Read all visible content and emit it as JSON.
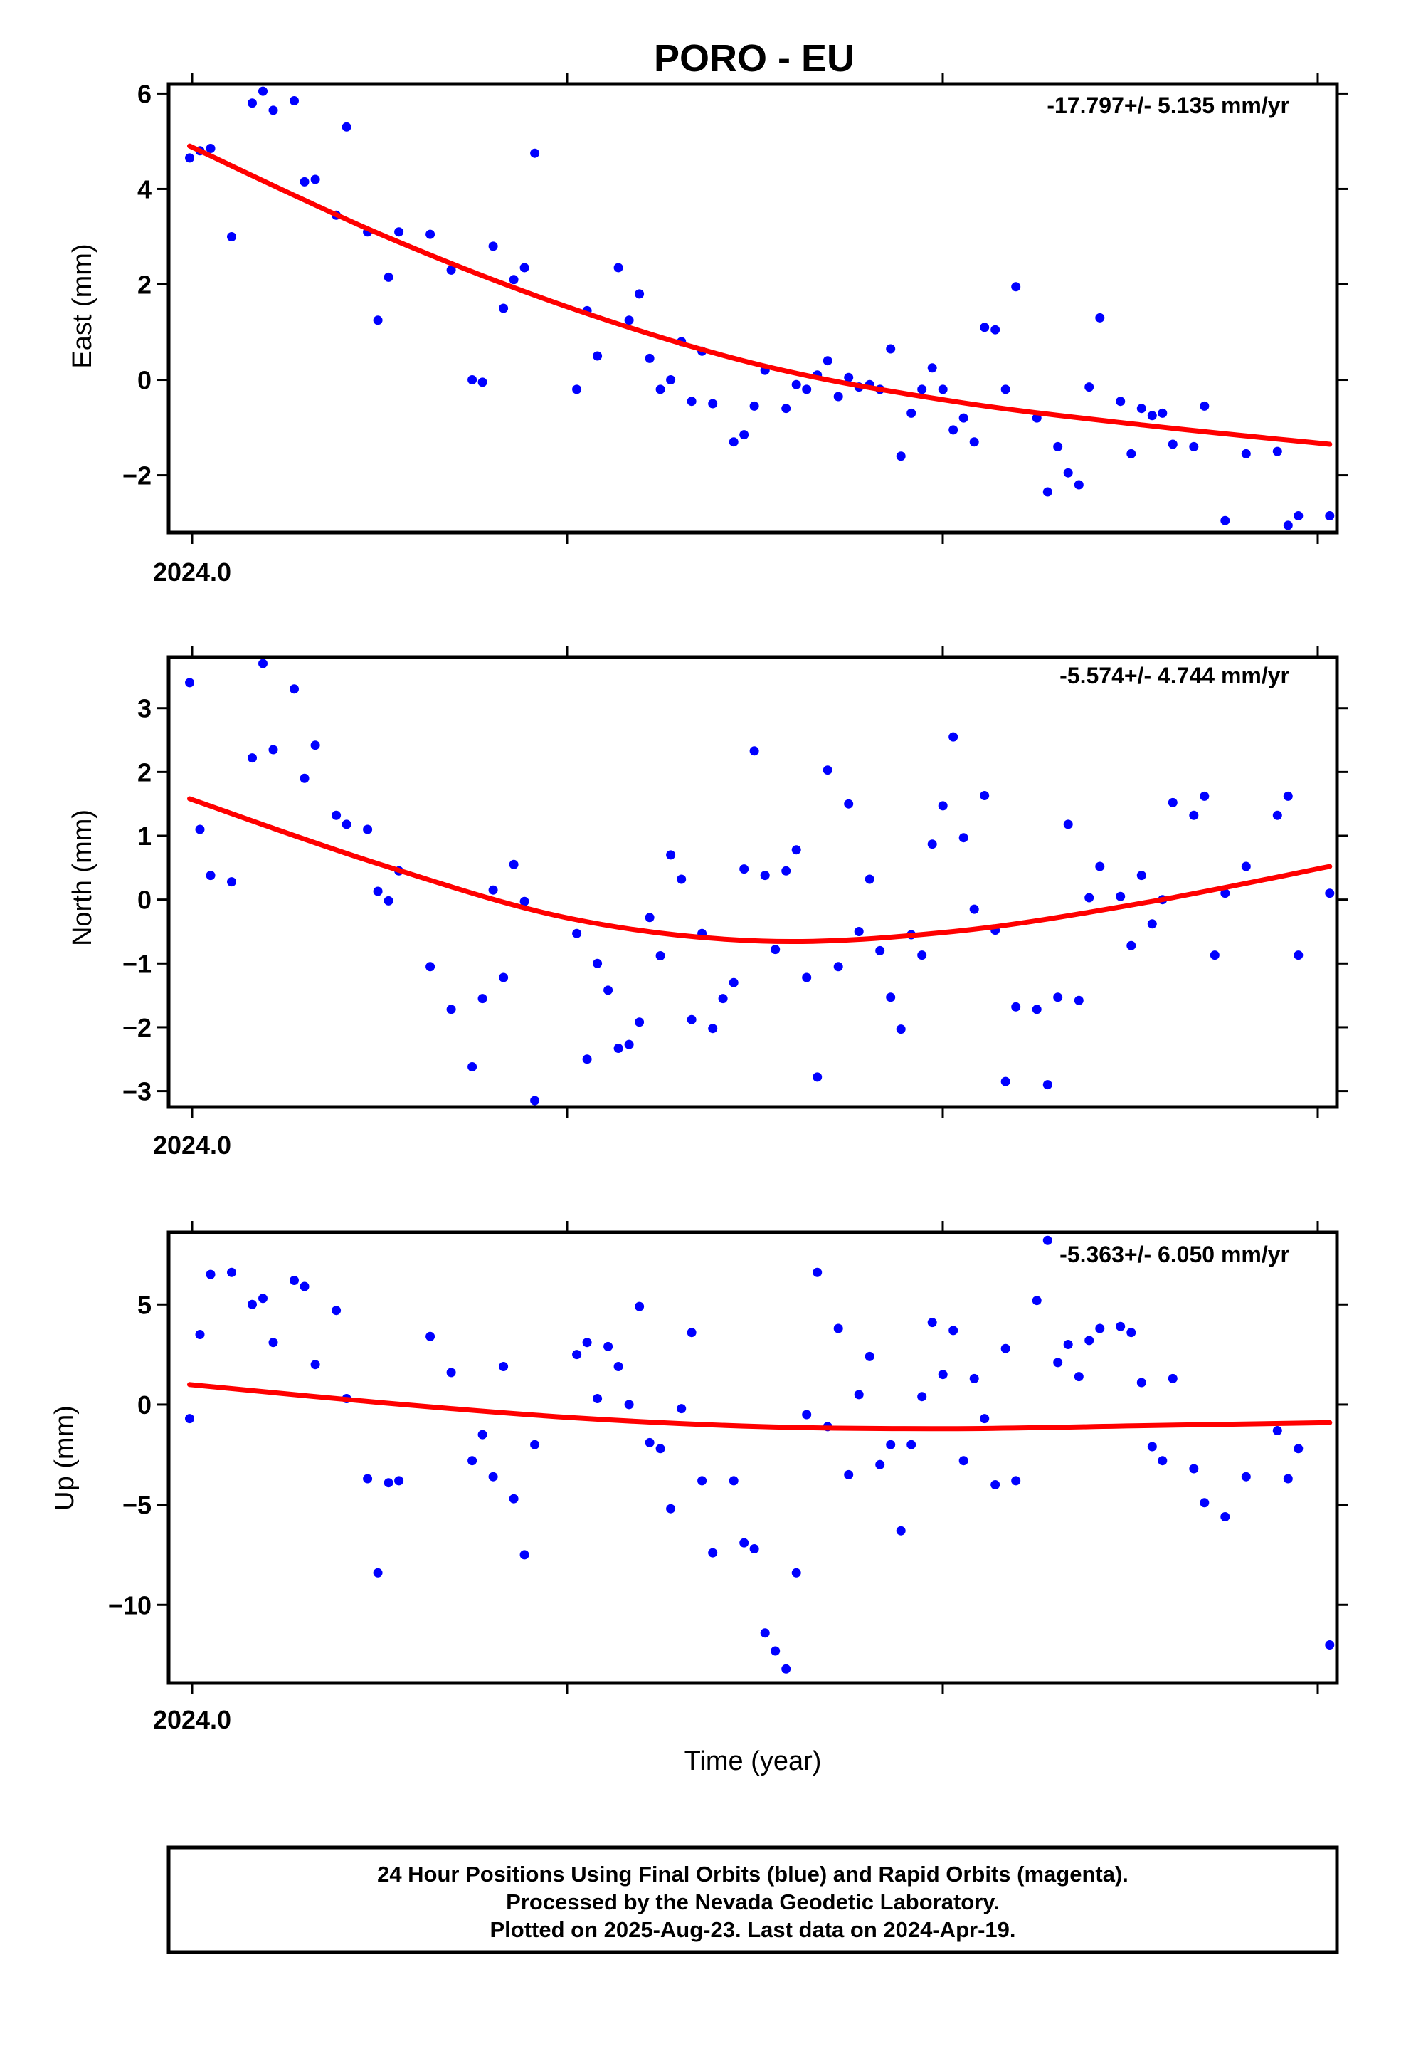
{
  "title": "PORO - EU",
  "xlabel": "Time (year)",
  "footer": [
    "24 Hour Positions Using Final Orbits (blue) and Rapid Orbits (magenta).",
    "Processed by the Nevada Geodetic Laboratory.",
    "Plotted on 2025-Aug-23. Last data on 2024-Apr-19."
  ],
  "colors": {
    "points": "#0000ff",
    "fit": "#ff0000",
    "axis": "#000000"
  },
  "chart_data": [
    {
      "type": "scatter",
      "ylabel": "East (mm)",
      "rate_label": "-17.797+/- 5.135 mm/yr",
      "xlim": [
        2023.9945,
        2024.3005
      ],
      "ylim": [
        -3.2,
        6.2
      ],
      "x_tick_label": "2024.0",
      "yticks": [
        -2,
        0,
        2,
        4,
        6
      ],
      "ytick_labels": [
        "−2",
        "0",
        "2",
        "4",
        "6"
      ],
      "x": [
        2024.0,
        2024.0027,
        2024.0055,
        2024.011,
        2024.0164,
        2024.0192,
        2024.0219,
        2024.0274,
        2024.0301,
        2024.0329,
        2024.0384,
        2024.0411,
        2024.0466,
        2024.0493,
        2024.0521,
        2024.0548,
        2024.063,
        2024.0685,
        2024.074,
        2024.0767,
        2024.0795,
        2024.0822,
        2024.0849,
        2024.0877,
        2024.0904,
        2024.1014,
        2024.1041,
        2024.1068,
        2024.1123,
        2024.1151,
        2024.1178,
        2024.1205,
        2024.1233,
        2024.126,
        2024.1288,
        2024.1315,
        2024.1342,
        2024.137,
        2024.1425,
        2024.1452,
        2024.1479,
        2024.1507,
        2024.1562,
        2024.1589,
        2024.1616,
        2024.1644,
        2024.1671,
        2024.1699,
        2024.1726,
        2024.1753,
        2024.1781,
        2024.1808,
        2024.1836,
        2024.1863,
        2024.189,
        2024.1918,
        2024.1945,
        2024.1973,
        2024.2,
        2024.2027,
        2024.2055,
        2024.2082,
        2024.211,
        2024.2137,
        2024.2164,
        2024.2219,
        2024.2247,
        2024.2274,
        2024.2301,
        2024.2329,
        2024.2356,
        2024.2384,
        2024.2438,
        2024.2466,
        2024.2493,
        2024.2521,
        2024.2548,
        2024.2575,
        2024.263,
        2024.2658,
        2024.2712,
        2024.2767,
        2024.2849,
        2024.2877,
        2024.2904,
        2024.2986
      ],
      "y": [
        4.65,
        4.8,
        4.85,
        3.0,
        5.8,
        6.05,
        5.65,
        5.85,
        4.15,
        4.2,
        3.45,
        5.3,
        3.1,
        1.25,
        2.15,
        3.1,
        3.05,
        2.3,
        0.0,
        -0.05,
        2.8,
        1.5,
        2.1,
        2.35,
        4.75,
        -0.2,
        1.45,
        0.5,
        2.35,
        1.25,
        1.8,
        0.45,
        -0.2,
        0.0,
        0.8,
        -0.45,
        0.6,
        -0.5,
        -1.3,
        -1.15,
        -0.55,
        0.2,
        -0.6,
        -0.1,
        -0.2,
        0.1,
        0.4,
        -0.35,
        0.05,
        -0.15,
        -0.1,
        -0.2,
        0.65,
        -1.6,
        -0.7,
        -0.2,
        0.25,
        -0.2,
        -1.05,
        -0.8,
        -1.3,
        1.1,
        1.05,
        -0.2,
        1.95,
        -0.8,
        -2.35,
        -1.4,
        -1.95,
        -2.2,
        -0.15,
        1.3,
        -0.45,
        -1.55,
        -0.6,
        -0.75,
        -0.7,
        -1.35,
        -1.4,
        -0.55,
        -2.95,
        -1.55,
        -1.5,
        -3.05,
        -2.85,
        -2.85
      ],
      "fit": {
        "x": [
          2024.0,
          2024.05,
          2024.1,
          2024.15,
          2024.2,
          2024.25,
          2024.2986
        ],
        "y": [
          4.9,
          3.05,
          1.5,
          0.3,
          -0.45,
          -0.95,
          -1.35
        ]
      }
    },
    {
      "type": "scatter",
      "ylabel": "North (mm)",
      "rate_label": "-5.574+/- 4.744 mm/yr",
      "xlim": [
        2023.9945,
        2024.3005
      ],
      "ylim": [
        -3.25,
        3.8
      ],
      "x_tick_label": "2024.0",
      "yticks": [
        -3,
        -2,
        -1,
        0,
        1,
        2,
        3
      ],
      "ytick_labels": [
        "−3",
        "−2",
        "−1",
        "0",
        "1",
        "2",
        "3"
      ],
      "x": [
        2024.0,
        2024.0027,
        2024.0055,
        2024.011,
        2024.0164,
        2024.0192,
        2024.0219,
        2024.0274,
        2024.0301,
        2024.0329,
        2024.0384,
        2024.0411,
        2024.0466,
        2024.0493,
        2024.0521,
        2024.0548,
        2024.063,
        2024.0685,
        2024.074,
        2024.0767,
        2024.0795,
        2024.0822,
        2024.0849,
        2024.0877,
        2024.0904,
        2024.1014,
        2024.1041,
        2024.1068,
        2024.1096,
        2024.1123,
        2024.1151,
        2024.1178,
        2024.1205,
        2024.1233,
        2024.126,
        2024.1288,
        2024.1315,
        2024.1342,
        2024.137,
        2024.1397,
        2024.1425,
        2024.1452,
        2024.1479,
        2024.1507,
        2024.1534,
        2024.1562,
        2024.1589,
        2024.1616,
        2024.1644,
        2024.1671,
        2024.1699,
        2024.1726,
        2024.1753,
        2024.1781,
        2024.1808,
        2024.1836,
        2024.1863,
        2024.189,
        2024.1918,
        2024.1945,
        2024.1973,
        2024.2,
        2024.2027,
        2024.2055,
        2024.2082,
        2024.211,
        2024.2137,
        2024.2164,
        2024.2219,
        2024.2247,
        2024.2274,
        2024.2301,
        2024.2329,
        2024.2356,
        2024.2384,
        2024.2438,
        2024.2466,
        2024.2493,
        2024.2521,
        2024.2548,
        2024.2575,
        2024.263,
        2024.2658,
        2024.2685,
        2024.2712,
        2024.2767,
        2024.2849,
        2024.2877,
        2024.2904,
        2024.2986
      ],
      "y": [
        3.4,
        1.1,
        0.38,
        0.28,
        2.22,
        3.7,
        2.35,
        3.3,
        1.9,
        2.42,
        1.32,
        1.18,
        1.1,
        0.13,
        -0.02,
        0.45,
        -1.05,
        -1.72,
        -2.62,
        -1.55,
        0.15,
        -1.22,
        0.55,
        -0.03,
        -3.15,
        -0.53,
        -2.5,
        -1.0,
        -1.42,
        -2.33,
        -2.27,
        -1.92,
        -0.28,
        -0.88,
        0.7,
        0.32,
        -1.88,
        -0.53,
        -2.02,
        -1.55,
        -1.3,
        0.48,
        2.33,
        0.38,
        -0.78,
        0.45,
        0.78,
        -1.22,
        -2.78,
        2.03,
        -1.05,
        1.5,
        -0.5,
        0.32,
        -0.8,
        -1.53,
        -2.03,
        -0.55,
        -0.87,
        0.87,
        1.47,
        2.55,
        0.97,
        -0.15,
        1.63,
        -0.48,
        -2.85,
        -1.68,
        -1.72,
        -2.9,
        -1.53,
        1.18,
        -1.58,
        0.03,
        0.52,
        0.05,
        -0.72,
        0.38,
        -0.38,
        0.0,
        1.52,
        1.32,
        1.62,
        -0.87,
        0.1,
        0.52,
        1.32,
        1.62,
        -0.87,
        0.1
      ],
      "fit": {
        "x": [
          2024.0,
          2024.05,
          2024.1,
          2024.15,
          2024.2,
          2024.25,
          2024.2986
        ],
        "y": [
          1.58,
          0.55,
          -0.3,
          -0.65,
          -0.5,
          -0.05,
          0.52
        ]
      }
    },
    {
      "type": "scatter",
      "ylabel": "Up (mm)",
      "rate_label": "-5.363+/- 6.050 mm/yr",
      "xlim": [
        2023.9945,
        2024.3005
      ],
      "ylim": [
        -13.9,
        8.6
      ],
      "x_tick_label": "2024.0",
      "yticks": [
        -10,
        -5,
        0,
        5
      ],
      "ytick_labels": [
        "−10",
        "−5",
        "0",
        "5"
      ],
      "x": [
        2024.0,
        2024.0027,
        2024.0055,
        2024.011,
        2024.0164,
        2024.0192,
        2024.0219,
        2024.0274,
        2024.0301,
        2024.0329,
        2024.0384,
        2024.0411,
        2024.0466,
        2024.0493,
        2024.0521,
        2024.0548,
        2024.063,
        2024.0685,
        2024.074,
        2024.0767,
        2024.0795,
        2024.0822,
        2024.0849,
        2024.0877,
        2024.0904,
        2024.1014,
        2024.1041,
        2024.1068,
        2024.1096,
        2024.1123,
        2024.1151,
        2024.1178,
        2024.1205,
        2024.1233,
        2024.126,
        2024.1288,
        2024.1315,
        2024.1342,
        2024.137,
        2024.1425,
        2024.1452,
        2024.1479,
        2024.1507,
        2024.1534,
        2024.1562,
        2024.1589,
        2024.1616,
        2024.1644,
        2024.1671,
        2024.1699,
        2024.1726,
        2024.1753,
        2024.1781,
        2024.1808,
        2024.1836,
        2024.1863,
        2024.189,
        2024.1918,
        2024.1945,
        2024.1973,
        2024.2,
        2024.2027,
        2024.2055,
        2024.2082,
        2024.211,
        2024.2137,
        2024.2164,
        2024.2219,
        2024.2247,
        2024.2274,
        2024.2301,
        2024.2329,
        2024.2356,
        2024.2384,
        2024.2438,
        2024.2466,
        2024.2493,
        2024.2521,
        2024.2548,
        2024.2575,
        2024.263,
        2024.2658,
        2024.2712,
        2024.2767,
        2024.2849,
        2024.2877,
        2024.2904,
        2024.2986
      ],
      "y": [
        -0.7,
        3.5,
        6.5,
        6.6,
        5.0,
        5.3,
        3.1,
        6.2,
        5.9,
        2.0,
        4.7,
        0.3,
        -3.7,
        -8.4,
        -3.9,
        -3.8,
        3.4,
        1.6,
        -2.8,
        -1.5,
        -3.6,
        1.9,
        -4.7,
        -7.5,
        -2.0,
        2.5,
        3.1,
        0.3,
        2.9,
        1.9,
        0.0,
        4.9,
        -1.9,
        -2.2,
        -5.2,
        -0.2,
        3.6,
        -3.8,
        -7.4,
        -3.8,
        -6.9,
        -7.2,
        -11.4,
        -12.3,
        -13.2,
        -8.4,
        -0.5,
        6.6,
        -1.1,
        3.8,
        -3.5,
        0.5,
        2.4,
        -3.0,
        -2.0,
        -6.3,
        -2.0,
        0.4,
        4.1,
        1.5,
        3.7,
        -2.8,
        1.3,
        -0.7,
        -4.0,
        2.8,
        -3.8,
        5.2,
        8.2,
        2.1,
        3.0,
        1.4,
        3.2,
        3.8,
        3.9,
        3.6,
        1.1,
        -2.1,
        -2.8,
        1.3,
        -3.2,
        -4.9,
        -5.6,
        -3.6,
        -1.3,
        -3.7,
        -2.2,
        -12.0
      ],
      "fit": {
        "x": [
          2024.0,
          2024.05,
          2024.1,
          2024.15,
          2024.2,
          2024.25,
          2024.2986
        ],
        "y": [
          1.0,
          0.1,
          -0.65,
          -1.1,
          -1.2,
          -1.05,
          -0.9
        ]
      }
    }
  ]
}
